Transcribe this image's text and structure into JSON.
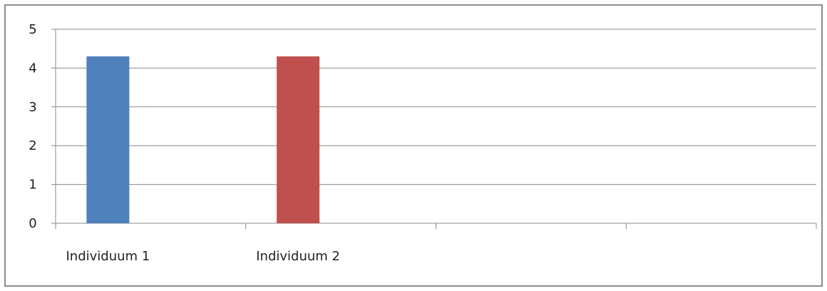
{
  "chart_data": {
    "type": "bar",
    "categories": [
      "Individuum 1",
      "Individuum 2",
      "",
      ""
    ],
    "values": [
      4.3,
      4.3,
      null,
      null
    ],
    "bar_colors": [
      "#4f81bd",
      "#c0504d",
      null,
      null
    ],
    "ylim": [
      0,
      5
    ],
    "yticks": [
      0,
      1,
      2,
      3,
      4,
      5
    ],
    "grid": true,
    "legend": "none",
    "title": "",
    "xlabel": "",
    "ylabel": ""
  },
  "colors": {
    "gridline": "#888888",
    "axis": "#888888",
    "border": "#8c8c8c"
  }
}
